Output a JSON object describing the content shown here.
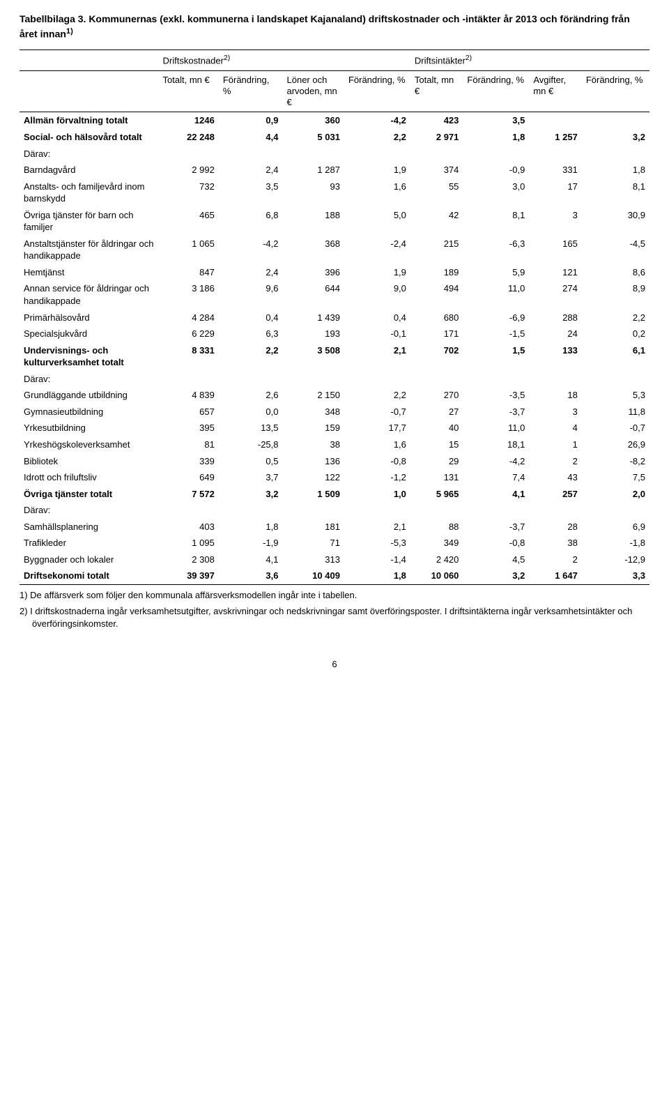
{
  "title_pre": "Tabellbilaga 3. Kommunernas (exkl. kommunerna i landskapet Kajanaland) driftskostnader och -intäkter år 2013 och förändring från året innan",
  "title_sup": "1)",
  "group_headers": {
    "left": "Driftskostnader",
    "left_sup": "2)",
    "right": "Driftsintäkter",
    "right_sup": "2)"
  },
  "sub_headers": [
    "",
    "Totalt, mn €",
    "Förändring, %",
    "Löner och arvoden, mn €",
    "Förändring, %",
    "Totalt, mn €",
    "Förändring, %",
    "Avgifter, mn €",
    "Förändring, %"
  ],
  "rows": [
    {
      "bold": true,
      "label": "Allmän förvaltning totalt",
      "cells": [
        "1246",
        "0,9",
        "360",
        "-4,2",
        "423",
        "3,5",
        "",
        ""
      ]
    },
    {
      "bold": true,
      "label": "Social- och hälsovård totalt",
      "cells": [
        "22 248",
        "4,4",
        "5 031",
        "2,2",
        "2 971",
        "1,8",
        "1 257",
        "3,2"
      ]
    },
    {
      "bold": false,
      "label": "Därav:",
      "cells": [
        "",
        "",
        "",
        "",
        "",
        "",
        "",
        ""
      ]
    },
    {
      "bold": false,
      "label": "Barndagvård",
      "cells": [
        "2 992",
        "2,4",
        "1 287",
        "1,9",
        "374",
        "-0,9",
        "331",
        "1,8"
      ]
    },
    {
      "bold": false,
      "label": "Anstalts- och familjevård inom barnskydd",
      "cells": [
        "732",
        "3,5",
        "93",
        "1,6",
        "55",
        "3,0",
        "17",
        "8,1"
      ]
    },
    {
      "bold": false,
      "label": "Övriga tjänster för barn och familjer",
      "cells": [
        "465",
        "6,8",
        "188",
        "5,0",
        "42",
        "8,1",
        "3",
        "30,9"
      ]
    },
    {
      "bold": false,
      "label": "Anstaltstjänster för åldringar och handikappade",
      "cells": [
        "1 065",
        "-4,2",
        "368",
        "-2,4",
        "215",
        "-6,3",
        "165",
        "-4,5"
      ]
    },
    {
      "bold": false,
      "label": "Hemtjänst",
      "cells": [
        "847",
        "2,4",
        "396",
        "1,9",
        "189",
        "5,9",
        "121",
        "8,6"
      ]
    },
    {
      "bold": false,
      "label": "Annan service för åldringar och handikappade",
      "cells": [
        "3 186",
        "9,6",
        "644",
        "9,0",
        "494",
        "11,0",
        "274",
        "8,9"
      ]
    },
    {
      "bold": false,
      "label": "Primärhälsovård",
      "cells": [
        "4 284",
        "0,4",
        "1 439",
        "0,4",
        "680",
        "-6,9",
        "288",
        "2,2"
      ]
    },
    {
      "bold": false,
      "label": "Specialsjukvård",
      "cells": [
        "6 229",
        "6,3",
        "193",
        "-0,1",
        "171",
        "-1,5",
        "24",
        "0,2"
      ]
    },
    {
      "bold": true,
      "label": "Undervisnings- och kulturverksamhet totalt",
      "cells": [
        "8 331",
        "2,2",
        "3 508",
        "2,1",
        "702",
        "1,5",
        "133",
        "6,1"
      ]
    },
    {
      "bold": false,
      "label": "Därav:",
      "cells": [
        "",
        "",
        "",
        "",
        "",
        "",
        "",
        ""
      ]
    },
    {
      "bold": false,
      "label": "Grundläggande utbildning",
      "cells": [
        "4 839",
        "2,6",
        "2 150",
        "2,2",
        "270",
        "-3,5",
        "18",
        "5,3"
      ]
    },
    {
      "bold": false,
      "label": "Gymnasieutbildning",
      "cells": [
        "657",
        "0,0",
        "348",
        "-0,7",
        "27",
        "-3,7",
        "3",
        "11,8"
      ]
    },
    {
      "bold": false,
      "label": "Yrkesutbildning",
      "cells": [
        "395",
        "13,5",
        "159",
        "17,7",
        "40",
        "11,0",
        "4",
        "-0,7"
      ]
    },
    {
      "bold": false,
      "label": "Yrkeshögskoleverksamhet",
      "cells": [
        "81",
        "-25,8",
        "38",
        "1,6",
        "15",
        "18,1",
        "1",
        "26,9"
      ]
    },
    {
      "bold": false,
      "label": "Bibliotek",
      "cells": [
        "339",
        "0,5",
        "136",
        "-0,8",
        "29",
        "-4,2",
        "2",
        "-8,2"
      ]
    },
    {
      "bold": false,
      "label": "Idrott och friluftsliv",
      "cells": [
        "649",
        "3,7",
        "122",
        "-1,2",
        "131",
        "7,4",
        "43",
        "7,5"
      ]
    },
    {
      "bold": true,
      "label": "Övriga tjänster totalt",
      "cells": [
        "7 572",
        "3,2",
        "1 509",
        "1,0",
        "5 965",
        "4,1",
        "257",
        "2,0"
      ]
    },
    {
      "bold": false,
      "label": "Därav:",
      "cells": [
        "",
        "",
        "",
        "",
        "",
        "",
        "",
        ""
      ]
    },
    {
      "bold": false,
      "label": "Samhällsplanering",
      "cells": [
        "403",
        "1,8",
        "181",
        "2,1",
        "88",
        "-3,7",
        "28",
        "6,9"
      ]
    },
    {
      "bold": false,
      "label": "Trafikleder",
      "cells": [
        "1 095",
        "-1,9",
        "71",
        "-5,3",
        "349",
        "-0,8",
        "38",
        "-1,8"
      ]
    },
    {
      "bold": false,
      "label": "Byggnader och lokaler",
      "cells": [
        "2 308",
        "4,1",
        "313",
        "-1,4",
        "2 420",
        "4,5",
        "2",
        "-12,9"
      ]
    },
    {
      "bold": true,
      "label": "Driftsekonomi totalt",
      "cells": [
        "39 397",
        "3,6",
        "10 409",
        "1,8",
        "10 060",
        "3,2",
        "1 647",
        "3,3"
      ]
    }
  ],
  "footnotes": [
    "1) De affärsverk som följer den kommunala affärsverksmodellen ingår inte i tabellen.",
    "2) I driftskostnaderna ingår verksamhetsutgifter, avskrivningar och nedskrivningar samt överföringsposter. I driftsintäkterna ingår verksamhetsintäkter och överföringsinkomster."
  ],
  "page_number": "6"
}
